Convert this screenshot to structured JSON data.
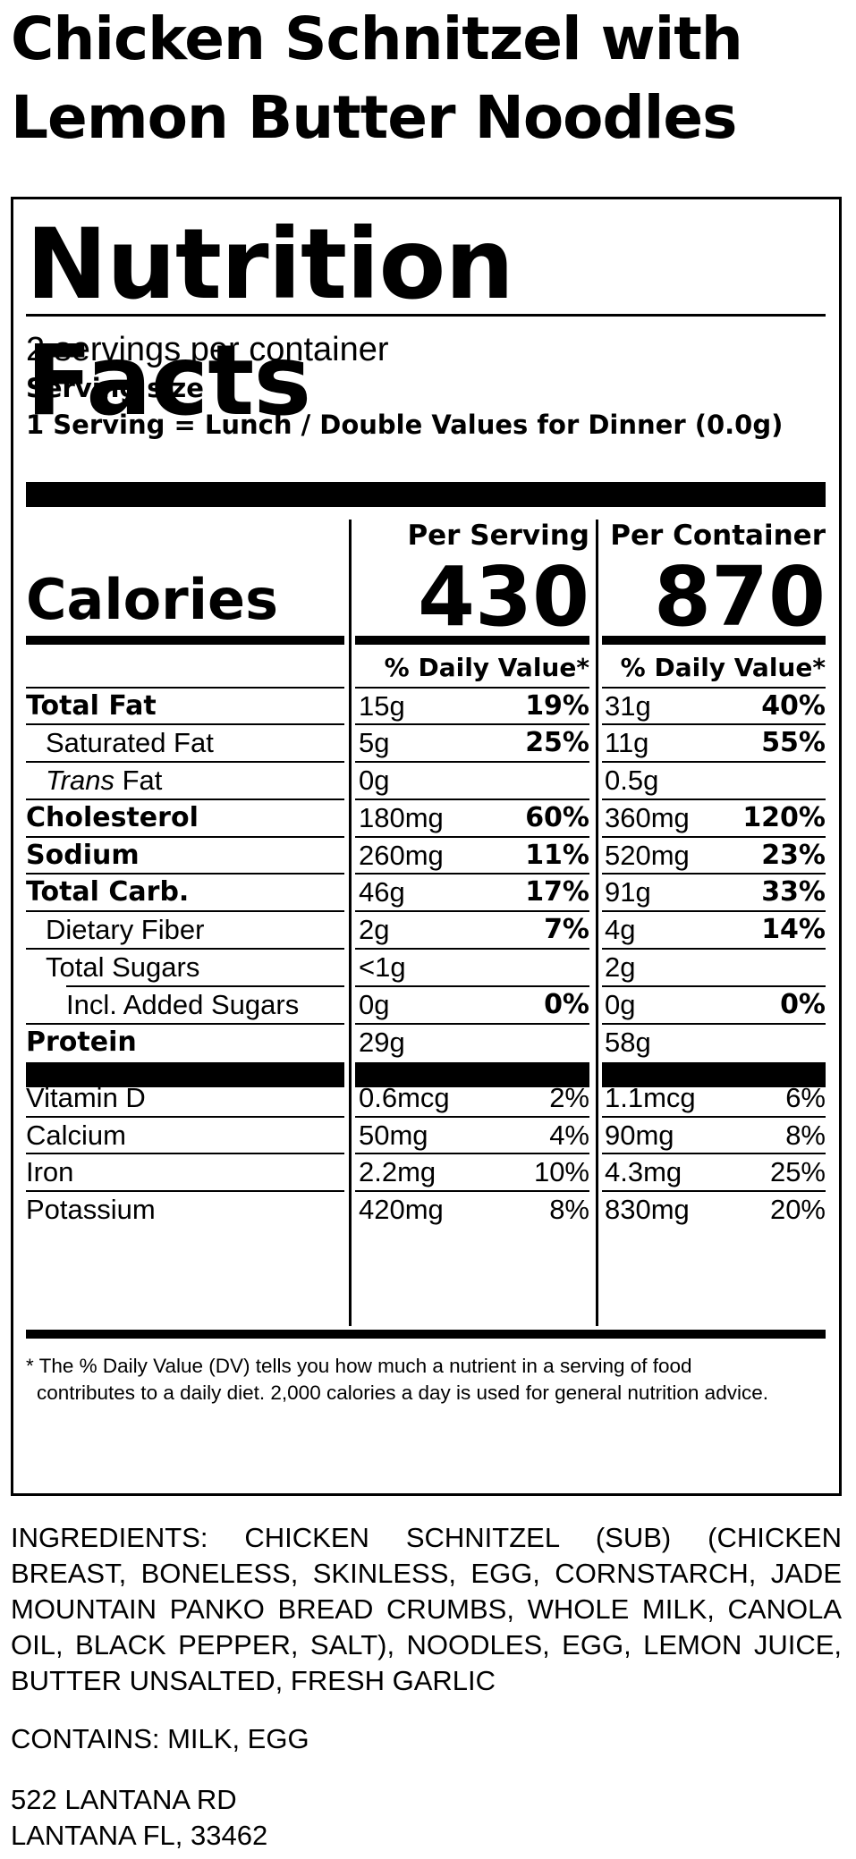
{
  "title": "Chicken Schnitzel with Lemon Butter Noodles",
  "label": {
    "heading": "Nutrition Facts",
    "servings_per_container": "2 servings per container",
    "serving_size_label": "Serving size",
    "serving_size_value": "1 Serving = Lunch / Double Values for Dinner (0.0g)",
    "per_serving_label": "Per Serving",
    "per_container_label": "Per Container",
    "calories_label": "Calories",
    "calories_per_serving": "430",
    "calories_per_container": "870",
    "daily_value_header": "% Daily Value*",
    "nutrients": [
      {
        "name": "Total Fat",
        "serving_amount": "15g",
        "serving_dv": "19%",
        "container_amount": "31g",
        "container_dv": "40%"
      },
      {
        "name": "Saturated Fat",
        "serving_amount": "5g",
        "serving_dv": "25%",
        "container_amount": "11g",
        "container_dv": "55%"
      },
      {
        "name_prefix": "Trans",
        "name": "Fat",
        "serving_amount": "0g",
        "serving_dv": "",
        "container_amount": "0.5g",
        "container_dv": ""
      },
      {
        "name": "Cholesterol",
        "serving_amount": "180mg",
        "serving_dv": "60%",
        "container_amount": "360mg",
        "container_dv": "120%"
      },
      {
        "name": "Sodium",
        "serving_amount": "260mg",
        "serving_dv": "11%",
        "container_amount": "520mg",
        "container_dv": "23%"
      },
      {
        "name": "Total Carb.",
        "serving_amount": "46g",
        "serving_dv": "17%",
        "container_amount": "91g",
        "container_dv": "33%"
      },
      {
        "name": "Dietary Fiber",
        "serving_amount": "2g",
        "serving_dv": "7%",
        "container_amount": "4g",
        "container_dv": "14%"
      },
      {
        "name": "Total Sugars",
        "serving_amount": "<1g",
        "serving_dv": "",
        "container_amount": "2g",
        "container_dv": ""
      },
      {
        "name": "Incl. Added Sugars",
        "serving_amount": "0g",
        "serving_dv": "0%",
        "container_amount": "0g",
        "container_dv": "0%"
      },
      {
        "name": "Protein",
        "serving_amount": "29g",
        "serving_dv": "",
        "container_amount": "58g",
        "container_dv": ""
      }
    ],
    "vitamins": [
      {
        "name": "Vitamin D",
        "serving_amount": "0.6mcg",
        "serving_dv": "2%",
        "container_amount": "1.1mcg",
        "container_dv": "6%"
      },
      {
        "name": "Calcium",
        "serving_amount": "50mg",
        "serving_dv": "4%",
        "container_amount": "90mg",
        "container_dv": "8%"
      },
      {
        "name": "Iron",
        "serving_amount": "2.2mg",
        "serving_dv": "10%",
        "container_amount": "4.3mg",
        "container_dv": "25%"
      },
      {
        "name": "Potassium",
        "serving_amount": "420mg",
        "serving_dv": "8%",
        "container_amount": "830mg",
        "container_dv": "20%"
      }
    ],
    "footnote_line1": "* The % Daily Value (DV) tells you how much a nutrient in a serving of food",
    "footnote_line2": "contributes to a daily diet. 2,000 calories a day is used for general nutrition advice."
  },
  "ingredients": "INGREDIENTS: CHICKEN SCHNITZEL (SUB) (CHICKEN BREAST, BONELESS, SKINLESS, EGG, CORNSTARCH, JADE MOUNTAIN PANKO BREAD CRUMBS, WHOLE MILK, CANOLA OIL, BLACK PEPPER, SALT), NOODLES, EGG, LEMON JUICE, BUTTER UNSALTED, FRESH GARLIC",
  "contains": "CONTAINS: MILK, EGG",
  "address_line1": "522 LANTANA RD",
  "address_line2": "LANTANA FL, 33462"
}
